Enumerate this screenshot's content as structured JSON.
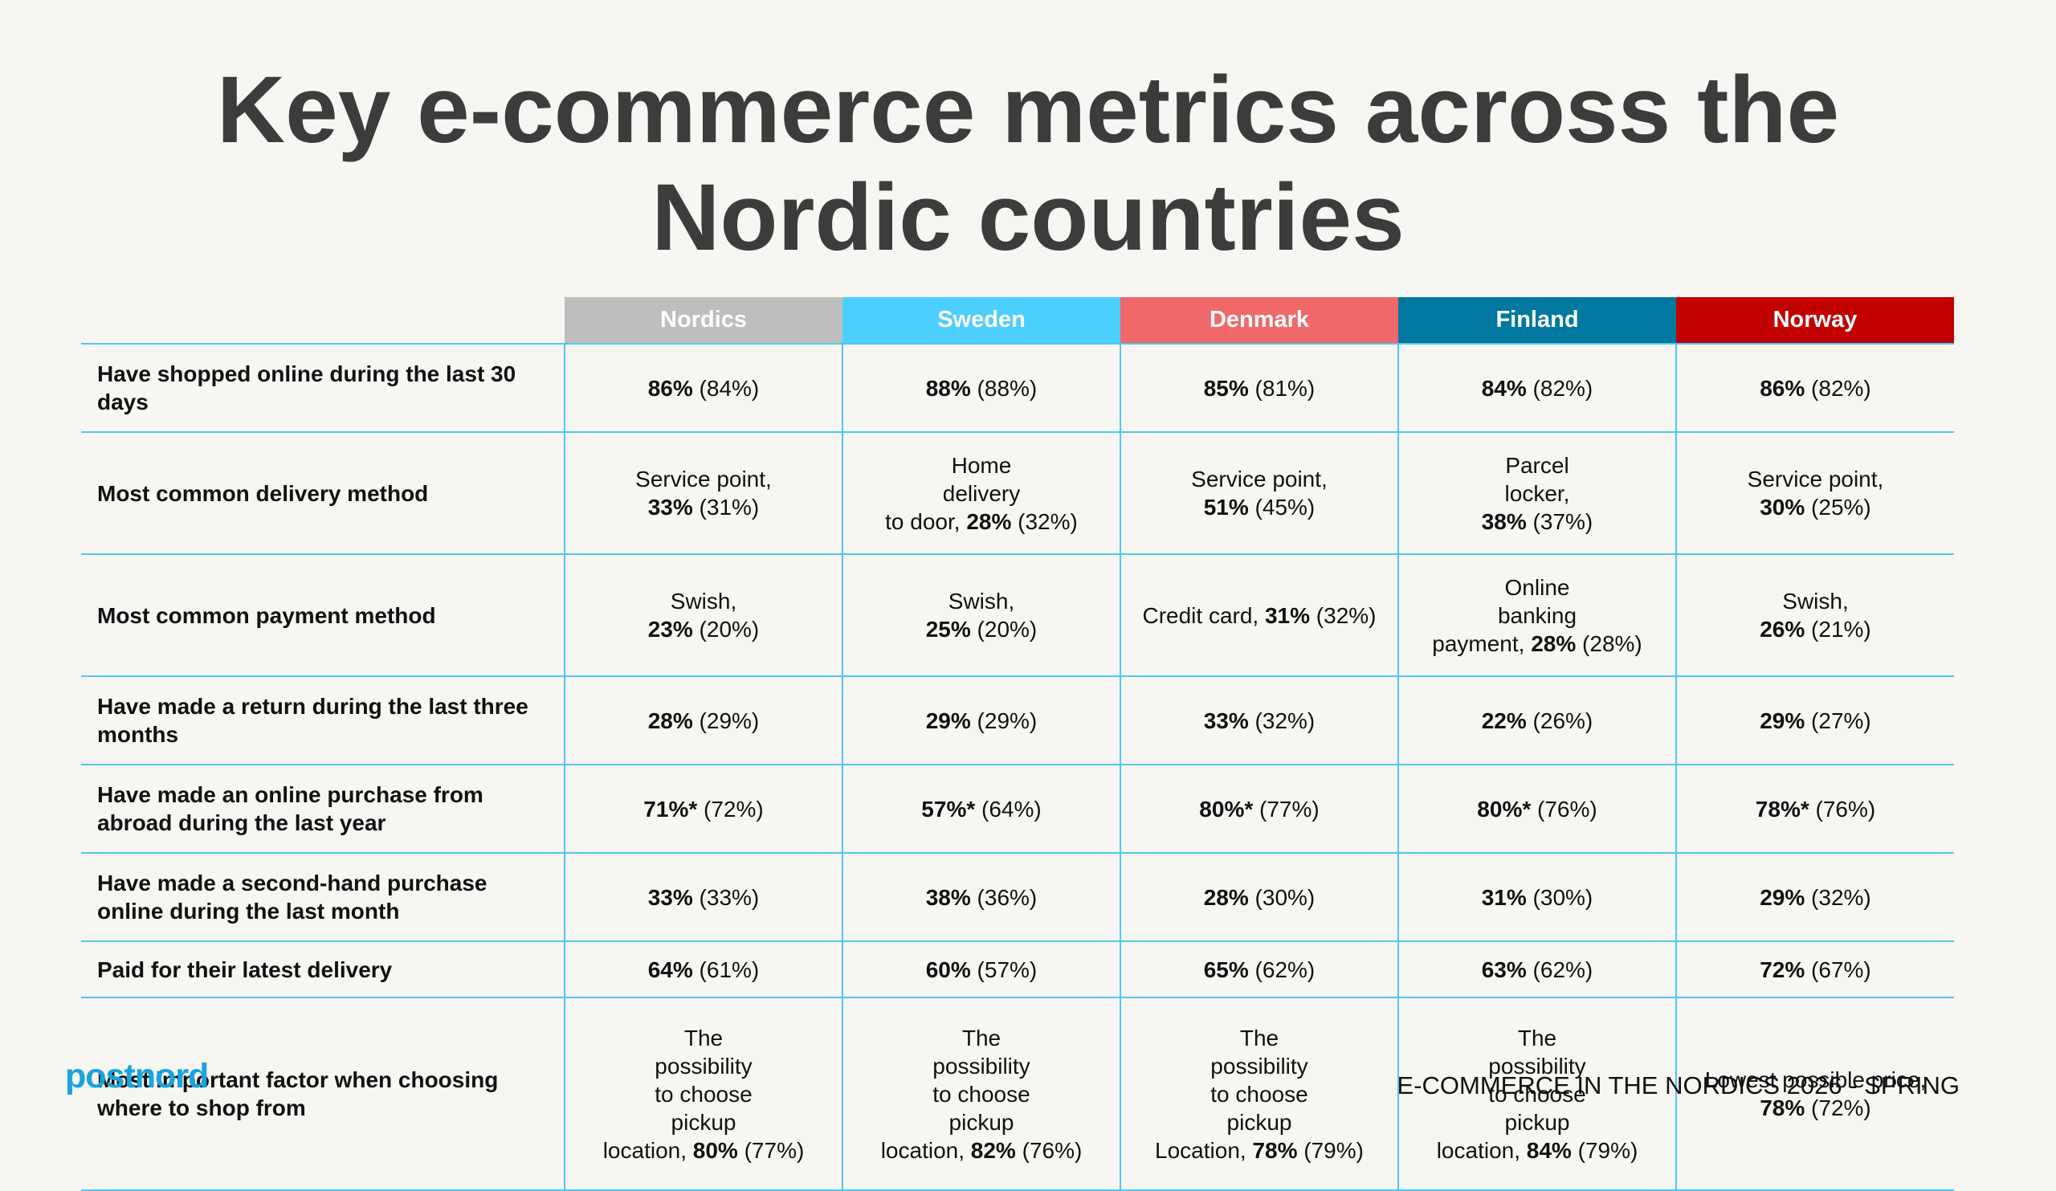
{
  "title": {
    "line1": "Key e-commerce metrics across the",
    "line2": "Nordic countries"
  },
  "columns": [
    {
      "label": "Nordics",
      "color": "#bebebe"
    },
    {
      "label": "Sweden",
      "color": "#4dcffd"
    },
    {
      "label": "Denmark",
      "color": "#f0686a"
    },
    {
      "label": "Finland",
      "color": "#00789f"
    },
    {
      "label": "Norway",
      "color": "#c20000"
    }
  ],
  "rows": [
    {
      "label": "Have shopped online during the last 30 days",
      "cells": [
        {
          "text": "",
          "bold": "86%",
          "rest": " (84%)"
        },
        {
          "text": "",
          "bold": "88%",
          "rest": " (88%)"
        },
        {
          "text": "",
          "bold": "85%",
          "rest": " (81%)"
        },
        {
          "text": "",
          "bold": "84%",
          "rest": " (82%)"
        },
        {
          "text": "",
          "bold": "86%",
          "rest": " (82%)"
        }
      ]
    },
    {
      "label": "Most common delivery method",
      "cells": [
        {
          "text": "Service point,\n",
          "bold": "33%",
          "rest": " (31%)"
        },
        {
          "text": "Home\ndelivery\nto door, ",
          "bold": "28%",
          "rest": " (32%)"
        },
        {
          "text": "Service point,\n",
          "bold": "51%",
          "rest": " (45%)"
        },
        {
          "text": "Parcel\nlocker,\n",
          "bold": "38%",
          "rest": " (37%)"
        },
        {
          "text": "Service point,\n",
          "bold": "30%",
          "rest": " (25%)"
        }
      ]
    },
    {
      "label": "Most common payment method",
      "cells": [
        {
          "text": "Swish,\n",
          "bold": "23%",
          "rest": " (20%)"
        },
        {
          "text": "Swish,\n",
          "bold": "25%",
          "rest": " (20%)"
        },
        {
          "text": "Credit card, ",
          "bold": "31%",
          "rest": " (32%)"
        },
        {
          "text": "Online\nbanking\npayment, ",
          "bold": "28%",
          "rest": " (28%)"
        },
        {
          "text": "Swish,\n",
          "bold": "26%",
          "rest": " (21%)"
        }
      ]
    },
    {
      "label": "Have made a return during the last three months",
      "cells": [
        {
          "text": "",
          "bold": "28%",
          "rest": " (29%)"
        },
        {
          "text": "",
          "bold": "29%",
          "rest": " (29%)"
        },
        {
          "text": "",
          "bold": "33%",
          "rest": " (32%)"
        },
        {
          "text": "",
          "bold": "22%",
          "rest": " (26%)"
        },
        {
          "text": "",
          "bold": "29%",
          "rest": " (27%)"
        }
      ]
    },
    {
      "label": "Have made an online purchase from abroad during the last year",
      "cells": [
        {
          "text": "",
          "bold": "71%*",
          "rest": " (72%)"
        },
        {
          "text": "",
          "bold": "57%*",
          "rest": " (64%)"
        },
        {
          "text": "",
          "bold": "80%*",
          "rest": " (77%)"
        },
        {
          "text": "",
          "bold": "80%*",
          "rest": " (76%)"
        },
        {
          "text": "",
          "bold": "78%*",
          "rest": " (76%)"
        }
      ]
    },
    {
      "label": "Have made a second-hand purchase online during the last month",
      "cells": [
        {
          "text": "",
          "bold": "33%",
          "rest": " (33%)"
        },
        {
          "text": "",
          "bold": "38%",
          "rest": " (36%)"
        },
        {
          "text": "",
          "bold": "28%",
          "rest": " (30%)"
        },
        {
          "text": "",
          "bold": "31%",
          "rest": " (30%)"
        },
        {
          "text": "",
          "bold": "29%",
          "rest": " (32%)"
        }
      ]
    },
    {
      "label": "Paid for their latest delivery",
      "cells": [
        {
          "text": "",
          "bold": "64%",
          "rest": " (61%)"
        },
        {
          "text": "",
          "bold": "60%",
          "rest": " (57%)"
        },
        {
          "text": "",
          "bold": "65%",
          "rest": " (62%)"
        },
        {
          "text": "",
          "bold": "63%",
          "rest": " (62%)"
        },
        {
          "text": "",
          "bold": "72%",
          "rest": " (67%)"
        }
      ]
    },
    {
      "label": "Most important factor when choosing where to shop from",
      "cells": [
        {
          "text": "The\npossibility\nto choose\npickup\nlocation, ",
          "bold": "80%",
          "rest": " (77%)"
        },
        {
          "text": "The\npossibility\nto choose\npickup\nlocation, ",
          "bold": "82%",
          "rest": " (76%)"
        },
        {
          "text": "The\npossibility\nto choose\npickup\nLocation, ",
          "bold": "78%",
          "rest": " (79%)"
        },
        {
          "text": "The\npossibility\nto choose\npickup\nlocation, ",
          "bold": "84%",
          "rest": " (79%)"
        },
        {
          "text": "Lowest possible price,\n",
          "bold": "78%",
          "rest": " (72%)"
        }
      ]
    }
  ],
  "logo": "postnord",
  "footer": "E-COMMERCE IN THE NORDICS 2026 - SPRING"
}
